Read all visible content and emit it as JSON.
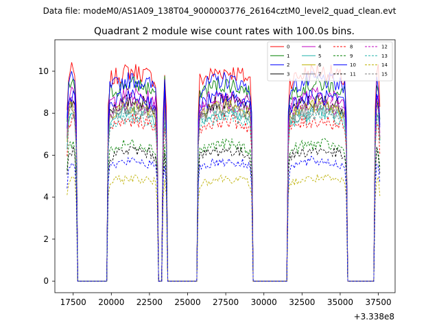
{
  "figure": {
    "suptitle": "Data file: modeM0/AS1A09_138T04_9000003776_26164cztM0_level2_quad_clean.evt"
  },
  "chart_data": {
    "type": "line",
    "title": "Quadrant 2 module wise count rates with 100.0s bins.",
    "xlabel": "",
    "ylabel": "",
    "x_offset_label": "+3.338e8",
    "xlim": [
      16300,
      38600
    ],
    "ylim": [
      -0.55,
      11.5
    ],
    "xticks": [
      17500,
      20000,
      22500,
      25000,
      27500,
      30000,
      32500,
      35000,
      37500
    ],
    "xtick_labels": [
      "17500",
      "20000",
      "22500",
      "25000",
      "27500",
      "30000",
      "32500",
      "35000",
      "37500"
    ],
    "yticks": [
      0,
      2,
      4,
      6,
      8,
      10
    ],
    "ytick_labels": [
      "0",
      "2",
      "4",
      "6",
      "8",
      "10"
    ],
    "legend_location": "upper right",
    "legend_columns": 4,
    "bin_seconds": 100,
    "x_start": 17100,
    "x_end": 37600,
    "on_segments": [
      [
        17100,
        17700
      ],
      [
        19800,
        23000
      ],
      [
        23400,
        23600
      ],
      [
        25700,
        29200
      ],
      [
        31600,
        35400
      ],
      [
        37300,
        37600
      ]
    ],
    "series": [
      {
        "name": "0",
        "color": "#ff0000",
        "dash": "solid",
        "level": 9.8
      },
      {
        "name": "1",
        "color": "#008000",
        "dash": "solid",
        "level": 9.2
      },
      {
        "name": "2",
        "color": "#0000ff",
        "dash": "solid",
        "level": 9.4
      },
      {
        "name": "3",
        "color": "#000000",
        "dash": "solid",
        "level": 8.4
      },
      {
        "name": "4",
        "color": "#bf00bf",
        "dash": "solid",
        "level": 8.7
      },
      {
        "name": "5",
        "color": "#20b2aa",
        "dash": "solid",
        "level": 7.9
      },
      {
        "name": "6",
        "color": "#bdb000",
        "dash": "solid",
        "level": 8.2
      },
      {
        "name": "7",
        "color": "#808080",
        "dash": "solid",
        "level": 8.0
      },
      {
        "name": "8",
        "color": "#ff0000",
        "dash": "dashed",
        "level": 7.5
      },
      {
        "name": "9",
        "color": "#008000",
        "dash": "dashed",
        "level": 6.4
      },
      {
        "name": "10",
        "color": "#0000ff",
        "dash": "solid",
        "level": 8.6
      },
      {
        "name": "11",
        "color": "#000000",
        "dash": "dashed",
        "level": 6.1
      },
      {
        "name": "12",
        "color": "#bf00bf",
        "dash": "dashed",
        "level": 8.3
      },
      {
        "name": "13",
        "color": "#20b2aa",
        "dash": "dashed",
        "level": 7.7
      },
      {
        "name": "14",
        "color": "#bdb000",
        "dash": "dashed",
        "level": 4.8
      },
      {
        "name": "15",
        "color": "#808080",
        "dash": "dashed",
        "level": 8.1
      },
      {
        "name": "2b",
        "color": "#0000ff",
        "dash": "dashed",
        "level": 5.6,
        "legend": false
      }
    ]
  }
}
